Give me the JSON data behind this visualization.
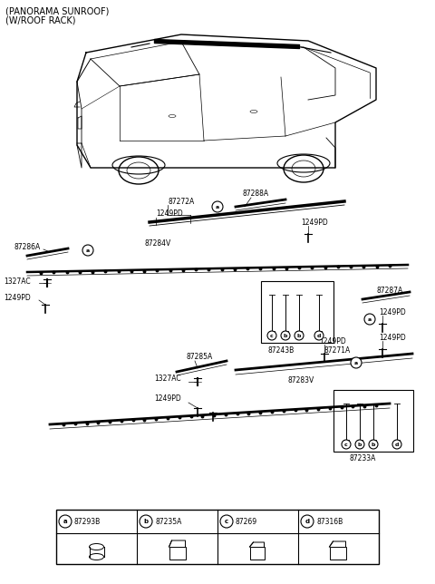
{
  "bg_color": "#ffffff",
  "fig_width": 4.8,
  "fig_height": 6.44,
  "dpi": 100,
  "title_line1": "(PANORAMA SUNROOF)",
  "title_line2": "(W/ROOF RACK)",
  "legend_items": [
    {
      "key": "a",
      "code": "87293B"
    },
    {
      "key": "b",
      "code": "87235A"
    },
    {
      "key": "c",
      "code": "87269"
    },
    {
      "key": "d",
      "code": "87316B"
    }
  ]
}
